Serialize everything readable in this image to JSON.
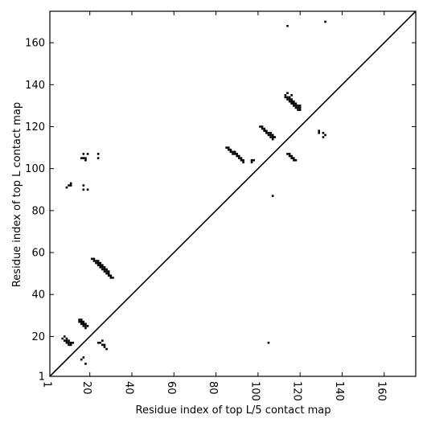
{
  "chart_data": {
    "type": "scatter",
    "xlabel": "Residue index of top L/5 contact map",
    "ylabel": "Residue index of top L contact map",
    "xlim": [
      1,
      175
    ],
    "ylim": [
      1,
      175
    ],
    "x_ticks": [
      1,
      20,
      40,
      60,
      80,
      100,
      120,
      140,
      160
    ],
    "y_ticks": [
      1,
      20,
      40,
      60,
      80,
      100,
      120,
      140,
      160
    ],
    "diagonal": {
      "from": [
        1,
        1
      ],
      "to": [
        175,
        175
      ]
    },
    "grid": false,
    "legend": "none",
    "marker_color": "#000000",
    "points": [
      [
        7,
        19
      ],
      [
        8,
        18
      ],
      [
        8,
        20
      ],
      [
        9,
        17
      ],
      [
        9,
        18
      ],
      [
        9,
        19
      ],
      [
        10,
        16
      ],
      [
        10,
        17
      ],
      [
        10,
        18
      ],
      [
        11,
        16
      ],
      [
        11,
        17
      ],
      [
        12,
        17
      ],
      [
        9,
        91
      ],
      [
        10,
        92
      ],
      [
        11,
        92
      ],
      [
        11,
        93
      ],
      [
        15,
        28
      ],
      [
        15,
        27
      ],
      [
        16,
        28
      ],
      [
        16,
        27
      ],
      [
        16,
        26
      ],
      [
        17,
        27
      ],
      [
        17,
        26
      ],
      [
        17,
        25
      ],
      [
        18,
        26
      ],
      [
        18,
        25
      ],
      [
        18,
        24
      ],
      [
        19,
        25
      ],
      [
        16,
        9
      ],
      [
        17,
        10
      ],
      [
        18,
        7
      ],
      [
        16,
        105
      ],
      [
        17,
        105
      ],
      [
        17,
        107
      ],
      [
        18,
        104
      ],
      [
        18,
        105
      ],
      [
        19,
        107
      ],
      [
        17,
        90
      ],
      [
        17,
        92
      ],
      [
        19,
        90
      ],
      [
        21,
        57
      ],
      [
        22,
        56
      ],
      [
        22,
        57
      ],
      [
        23,
        56
      ],
      [
        23,
        55
      ],
      [
        24,
        56
      ],
      [
        24,
        55
      ],
      [
        24,
        54
      ],
      [
        25,
        55
      ],
      [
        25,
        54
      ],
      [
        25,
        53
      ],
      [
        26,
        54
      ],
      [
        26,
        53
      ],
      [
        26,
        52
      ],
      [
        27,
        52
      ],
      [
        27,
        51
      ],
      [
        27,
        53
      ],
      [
        28,
        51
      ],
      [
        28,
        50
      ],
      [
        28,
        52
      ],
      [
        29,
        50
      ],
      [
        29,
        49
      ],
      [
        29,
        51
      ],
      [
        30,
        49
      ],
      [
        30,
        48
      ],
      [
        31,
        48
      ],
      [
        24,
        105
      ],
      [
        24,
        107
      ],
      [
        24,
        17
      ],
      [
        25,
        17
      ],
      [
        26,
        16
      ],
      [
        26,
        18
      ],
      [
        27,
        15
      ],
      [
        27,
        16
      ],
      [
        28,
        14
      ],
      [
        85,
        110
      ],
      [
        86,
        110
      ],
      [
        86,
        109
      ],
      [
        87,
        109
      ],
      [
        87,
        108
      ],
      [
        88,
        108
      ],
      [
        88,
        107
      ],
      [
        89,
        107
      ],
      [
        89,
        108
      ],
      [
        90,
        107
      ],
      [
        90,
        106
      ],
      [
        91,
        106
      ],
      [
        91,
        105
      ],
      [
        92,
        105
      ],
      [
        92,
        104
      ],
      [
        93,
        104
      ],
      [
        93,
        103
      ],
      [
        97,
        103
      ],
      [
        97,
        104
      ],
      [
        98,
        104
      ],
      [
        101,
        120
      ],
      [
        102,
        120
      ],
      [
        102,
        119
      ],
      [
        103,
        119
      ],
      [
        103,
        118
      ],
      [
        104,
        118
      ],
      [
        104,
        117
      ],
      [
        105,
        117
      ],
      [
        105,
        116
      ],
      [
        106,
        117
      ],
      [
        106,
        116
      ],
      [
        106,
        115
      ],
      [
        107,
        116
      ],
      [
        107,
        115
      ],
      [
        107,
        114
      ],
      [
        108,
        115
      ],
      [
        105,
        17
      ],
      [
        107,
        87
      ],
      [
        113,
        134
      ],
      [
        113,
        135
      ],
      [
        114,
        133
      ],
      [
        114,
        134
      ],
      [
        114,
        136
      ],
      [
        115,
        132
      ],
      [
        115,
        133
      ],
      [
        115,
        134
      ],
      [
        116,
        131
      ],
      [
        116,
        132
      ],
      [
        116,
        133
      ],
      [
        116,
        135
      ],
      [
        117,
        130
      ],
      [
        117,
        131
      ],
      [
        117,
        132
      ],
      [
        118,
        129
      ],
      [
        118,
        130
      ],
      [
        118,
        131
      ],
      [
        119,
        128
      ],
      [
        119,
        129
      ],
      [
        119,
        130
      ],
      [
        120,
        128
      ],
      [
        120,
        129
      ],
      [
        120,
        130
      ],
      [
        114,
        107
      ],
      [
        115,
        106
      ],
      [
        115,
        107
      ],
      [
        116,
        105
      ],
      [
        116,
        106
      ],
      [
        117,
        104
      ],
      [
        117,
        105
      ],
      [
        118,
        104
      ],
      [
        129,
        117
      ],
      [
        129,
        118
      ],
      [
        131,
        115
      ],
      [
        131,
        117
      ],
      [
        132,
        116
      ],
      [
        114,
        168
      ],
      [
        132,
        170
      ]
    ]
  }
}
